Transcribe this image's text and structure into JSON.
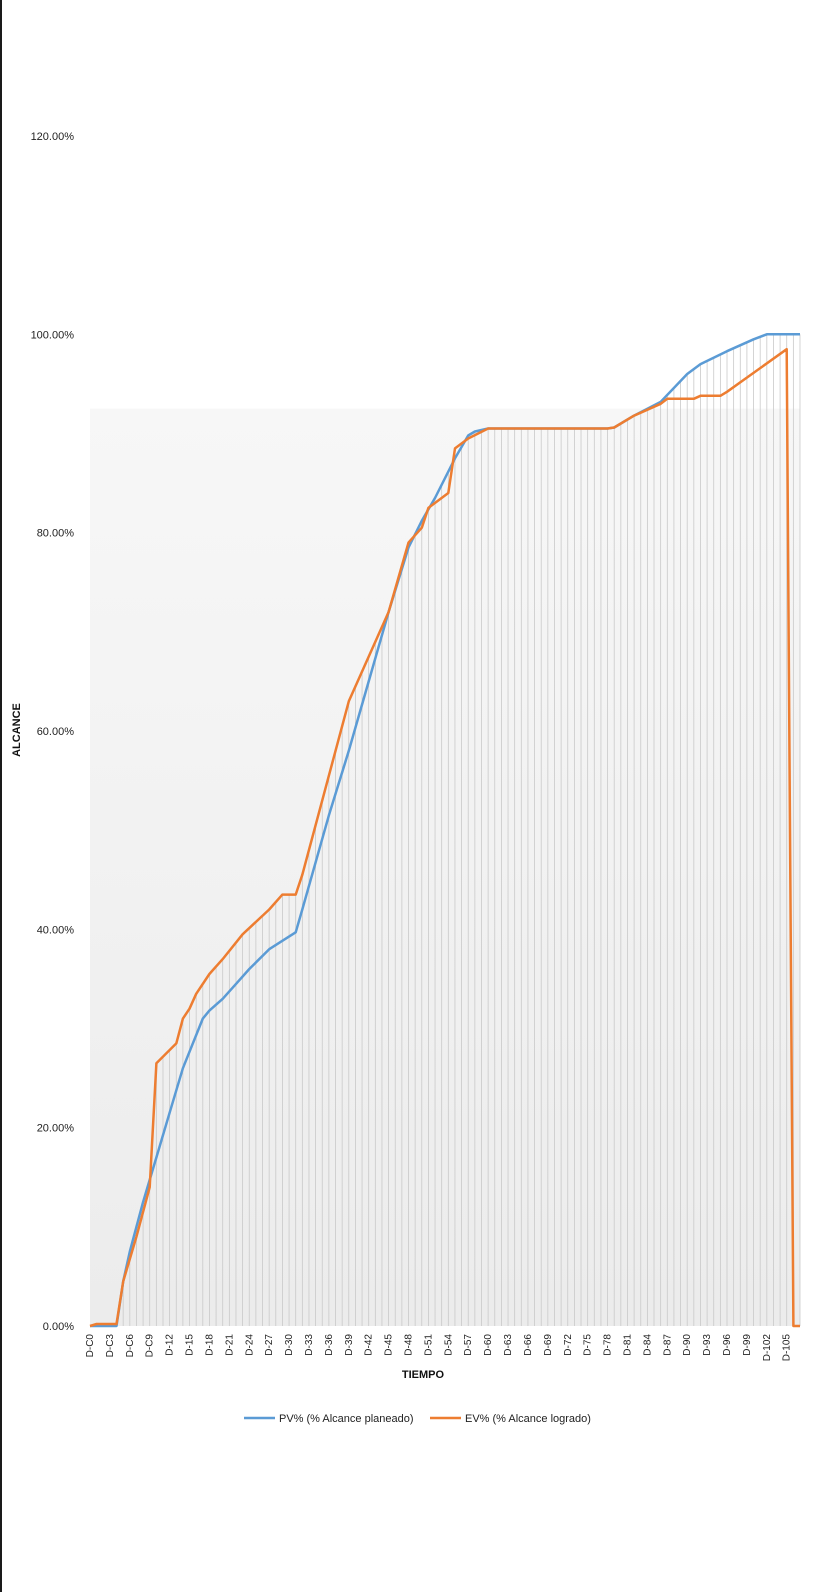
{
  "chart_data": {
    "type": "line",
    "title": "",
    "xlabel": "TIEMPO",
    "ylabel": "ALCANCE",
    "ylim": [
      0,
      120
    ],
    "y_ticks": [
      "0.00%",
      "20.00%",
      "40.00%",
      "60.00%",
      "80.00%",
      "100.00%",
      "120.00%"
    ],
    "x_tick_labels": [
      "D-C0",
      "D-C3",
      "D-C6",
      "D-C9",
      "D-12",
      "D-15",
      "D-18",
      "D-21",
      "D-24",
      "D-27",
      "D-30",
      "D-33",
      "D-36",
      "D-39",
      "D-42",
      "D-45",
      "D-48",
      "D-51",
      "D-54",
      "D-57",
      "D-60",
      "D-63",
      "D-66",
      "D-69",
      "D-72",
      "D-75",
      "D-78",
      "D-81",
      "D-84",
      "D-87",
      "D-90",
      "D-93",
      "D-96",
      "D-99",
      "D-102",
      "D-105"
    ],
    "x_range": [
      0,
      107
    ],
    "grid": "vertical drop lines",
    "legend_position": "bottom",
    "series": [
      {
        "name": "PV% (% Alcance planeado)",
        "color": "#5b9bd5",
        "points": [
          [
            0,
            0
          ],
          [
            4,
            0
          ],
          [
            5,
            4.5
          ],
          [
            6,
            7.5
          ],
          [
            8,
            12.5
          ],
          [
            10,
            17
          ],
          [
            12,
            21.5
          ],
          [
            14,
            26
          ],
          [
            17,
            31
          ],
          [
            18,
            31.8
          ],
          [
            20,
            33
          ],
          [
            22,
            34.5
          ],
          [
            24,
            36
          ],
          [
            27,
            38
          ],
          [
            31,
            39.7
          ],
          [
            32,
            42
          ],
          [
            36,
            51.5
          ],
          [
            39,
            58
          ],
          [
            42,
            65
          ],
          [
            45,
            72
          ],
          [
            48,
            78.5
          ],
          [
            50,
            81.2
          ],
          [
            52,
            83.5
          ],
          [
            55,
            87.5
          ],
          [
            57,
            89.8
          ],
          [
            58,
            90.2
          ],
          [
            60,
            90.5
          ],
          [
            78,
            90.5
          ],
          [
            79,
            90.6
          ],
          [
            82,
            91.8
          ],
          [
            86,
            93.2
          ],
          [
            90,
            96
          ],
          [
            92,
            97
          ],
          [
            96,
            98.3
          ],
          [
            100,
            99.5
          ],
          [
            102,
            100
          ],
          [
            107,
            100
          ]
        ]
      },
      {
        "name": "EV% (% Alcance logrado)",
        "color": "#ed7d31",
        "points": [
          [
            0,
            0
          ],
          [
            1,
            0.2
          ],
          [
            4,
            0.2
          ],
          [
            5,
            4.5
          ],
          [
            7,
            9
          ],
          [
            9,
            14
          ],
          [
            10,
            26.5
          ],
          [
            13,
            28.5
          ],
          [
            14,
            31
          ],
          [
            15,
            32
          ],
          [
            16,
            33.5
          ],
          [
            18,
            35.5
          ],
          [
            20,
            37
          ],
          [
            23,
            39.5
          ],
          [
            27,
            42
          ],
          [
            29,
            43.5
          ],
          [
            31,
            43.5
          ],
          [
            32,
            45.5
          ],
          [
            39,
            63
          ],
          [
            42,
            67.5
          ],
          [
            45,
            72
          ],
          [
            48,
            79
          ],
          [
            50,
            80.5
          ],
          [
            51,
            82.5
          ],
          [
            54,
            84
          ],
          [
            55,
            88.5
          ],
          [
            57,
            89.5
          ],
          [
            60,
            90.5
          ],
          [
            78,
            90.5
          ],
          [
            79,
            90.6
          ],
          [
            82,
            91.8
          ],
          [
            86,
            93
          ],
          [
            87,
            93.5
          ],
          [
            91,
            93.5
          ],
          [
            92,
            93.8
          ],
          [
            95,
            93.8
          ],
          [
            96,
            94.2
          ],
          [
            105,
            98.5
          ],
          [
            106,
            0
          ],
          [
            107,
            0
          ]
        ]
      }
    ],
    "legend": [
      {
        "label": "PV% (% Alcance planeado)",
        "color": "#5b9bd5"
      },
      {
        "label": "EV% (% Alcance logrado)",
        "color": "#ed7d31"
      }
    ]
  }
}
